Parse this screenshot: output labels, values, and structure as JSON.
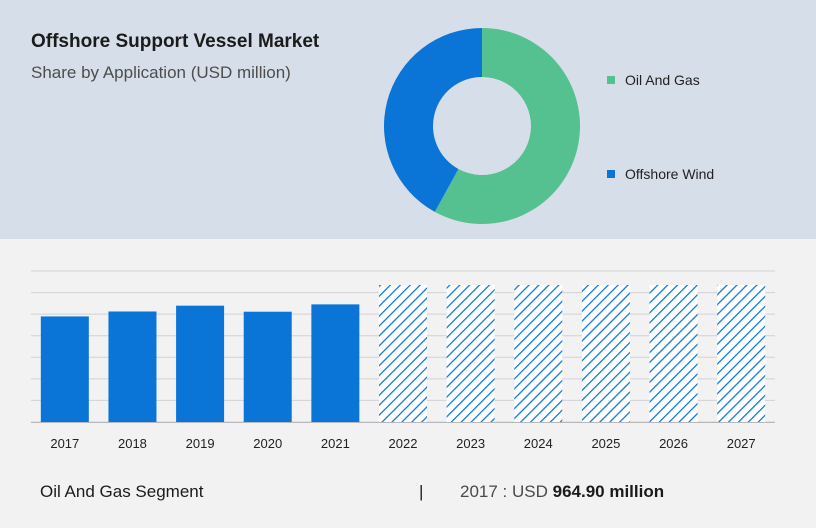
{
  "header": {
    "title": "Offshore Support Vessel Market",
    "subtitle": "Share by Application (USD million)"
  },
  "footer": {
    "segment_label": "Oil And Gas Segment",
    "separator": "|",
    "year_prefix": "2017 : USD",
    "value": "964.90 million"
  },
  "colors": {
    "oil_and_gas": "#55c090",
    "offshore_wind": "#0a75d6",
    "bar": "#0a75d6",
    "forecast_hatch": "#0a75d6",
    "top_panel_bg": "#d6dee9",
    "bottom_panel_bg": "#f2f2f3"
  },
  "chart_data": [
    {
      "type": "pie",
      "donut": true,
      "title": "Share by Application (USD million)",
      "legend_position": "right",
      "slices": [
        {
          "label": "Oil And Gas",
          "value": 58
        },
        {
          "label": "Offshore Wind",
          "value": 42
        }
      ]
    },
    {
      "type": "bar",
      "categories": [
        "2017",
        "2018",
        "2019",
        "2020",
        "2021",
        "2022",
        "2023",
        "2024",
        "2025",
        "2026",
        "2027"
      ],
      "values": [
        964.9,
        1010,
        1063,
        1008,
        1075,
        null,
        null,
        null,
        null,
        null,
        null
      ],
      "forecast": [
        false,
        false,
        false,
        false,
        false,
        true,
        true,
        true,
        true,
        true,
        true
      ],
      "ylim": [
        0,
        1380
      ],
      "grid": true,
      "xlabel": "",
      "ylabel": ""
    }
  ]
}
